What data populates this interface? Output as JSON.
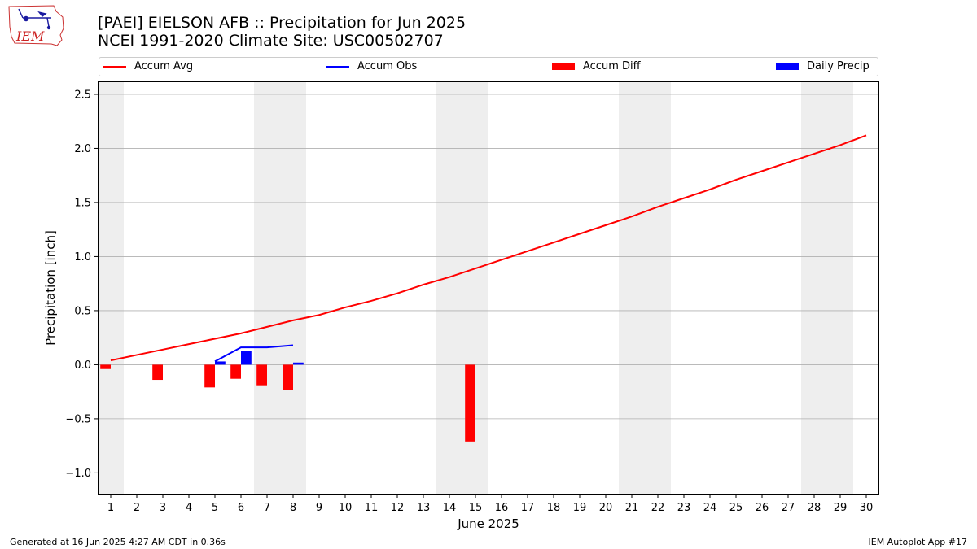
{
  "header": {
    "title_line1": "[PAEI] EIELSON AFB :: Precipitation for Jun 2025",
    "title_line2": "NCEI 1991-2020 Climate Site: USC00502707"
  },
  "logo": {
    "text": "IEM"
  },
  "footer": {
    "left": "Generated at 16 Jun 2025 4:27 AM CDT in 0.36s",
    "right": "IEM Autoplot App #17"
  },
  "colors": {
    "avg": "#ff0000",
    "obs": "#0000ff",
    "diff": "#ff0000",
    "daily": "#0000ff",
    "weekend": "#eeeeee",
    "grid": "#b0b0b0"
  },
  "chart_data": {
    "type": "bar",
    "title": "[PAEI] EIELSON AFB :: Precipitation for Jun 2025",
    "subtitle": "NCEI 1991-2020 Climate Site: USC00502707",
    "xlabel": "June 2025",
    "ylabel": "Precipitation [inch]",
    "xlim": [
      0.5,
      30.5
    ],
    "ylim": [
      -1.2,
      2.62
    ],
    "yticks": [
      -1.0,
      -0.5,
      0.0,
      0.5,
      1.0,
      1.5,
      2.0,
      2.5
    ],
    "ytick_labels": [
      "−1.0",
      "−0.5",
      "0.0",
      "0.5",
      "1.0",
      "1.5",
      "2.0",
      "2.5"
    ],
    "days": [
      1,
      2,
      3,
      4,
      5,
      6,
      7,
      8,
      9,
      10,
      11,
      12,
      13,
      14,
      15,
      16,
      17,
      18,
      19,
      20,
      21,
      22,
      23,
      24,
      25,
      26,
      27,
      28,
      29,
      30
    ],
    "day_labels": [
      "1",
      "2",
      "3",
      "4",
      "5",
      "6",
      "7",
      "8",
      "9",
      "10",
      "11",
      "12",
      "13",
      "14",
      "15",
      "16",
      "17",
      "18",
      "19",
      "20",
      "21",
      "22",
      "23",
      "24",
      "25",
      "26",
      "27",
      "28",
      "29",
      "30"
    ],
    "weekend_spans": [
      [
        0.5,
        1.5
      ],
      [
        6.5,
        8.5
      ],
      [
        13.5,
        15.5
      ],
      [
        20.5,
        22.5
      ],
      [
        27.5,
        29.5
      ]
    ],
    "grid": "horizontal",
    "legend": [
      "Accum Avg",
      "Accum Obs",
      "Accum Diff",
      "Daily Precip"
    ],
    "legend_position": "top",
    "series": [
      {
        "name": "Accum Avg",
        "kind": "line",
        "x": [
          1,
          2,
          3,
          4,
          5,
          6,
          7,
          8,
          9,
          10,
          11,
          12,
          13,
          14,
          15,
          16,
          17,
          18,
          19,
          20,
          21,
          22,
          23,
          24,
          25,
          26,
          27,
          28,
          29,
          30
        ],
        "values": [
          0.04,
          0.09,
          0.14,
          0.19,
          0.24,
          0.29,
          0.35,
          0.41,
          0.46,
          0.53,
          0.59,
          0.66,
          0.74,
          0.81,
          0.89,
          0.97,
          1.05,
          1.13,
          1.21,
          1.29,
          1.37,
          1.46,
          1.54,
          1.62,
          1.71,
          1.79,
          1.87,
          1.95,
          2.03,
          2.12
        ]
      },
      {
        "name": "Accum Obs",
        "kind": "line",
        "x": [
          5,
          6,
          7,
          8
        ],
        "values": [
          0.03,
          0.16,
          0.16,
          0.18
        ]
      },
      {
        "name": "Accum Diff",
        "kind": "bar",
        "x": [
          1,
          3,
          5,
          6,
          7,
          8,
          15
        ],
        "values": [
          -0.04,
          -0.14,
          -0.21,
          -0.13,
          -0.19,
          -0.23,
          -0.71
        ]
      },
      {
        "name": "Daily Precip",
        "kind": "bar",
        "x": [
          5,
          6,
          8
        ],
        "values": [
          0.03,
          0.13,
          0.02
        ]
      }
    ]
  }
}
